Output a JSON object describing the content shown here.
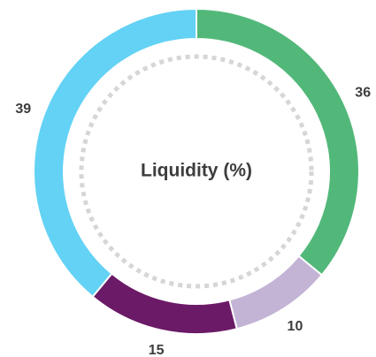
{
  "chart_data": {
    "type": "donut",
    "title": "Liquidity (%)",
    "values": [
      36,
      10,
      15,
      39
    ],
    "colors": [
      "#52b87a",
      "#c3b4d6",
      "#6b1a67",
      "#63d2f5"
    ]
  }
}
